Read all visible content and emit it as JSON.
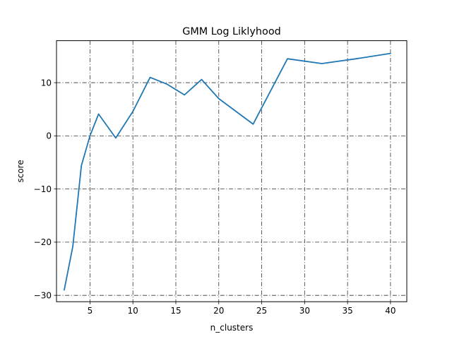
{
  "chart_data": {
    "type": "line",
    "title": "GMM Log Liklyhood",
    "xlabel": "n_clusters",
    "ylabel": "score",
    "xlim": [
      1.1,
      41.9
    ],
    "ylim": [
      -31.2,
      17.9
    ],
    "x_ticks": [
      5,
      10,
      15,
      20,
      25,
      30,
      35,
      40
    ],
    "y_ticks": [
      -30,
      -20,
      -10,
      0,
      10
    ],
    "grid": true,
    "legend": "none",
    "series": [
      {
        "color": "#1f77b4",
        "x": [
          2,
          3,
          4,
          5,
          6,
          8,
          10,
          12,
          14,
          16,
          18,
          20,
          24,
          28,
          32,
          36,
          40
        ],
        "y": [
          -29.0,
          -20.8,
          -5.6,
          0.0,
          4.1,
          -0.4,
          4.6,
          11.0,
          9.7,
          7.7,
          10.6,
          7.0,
          2.2,
          14.5,
          13.6,
          14.5,
          15.5
        ]
      }
    ]
  }
}
